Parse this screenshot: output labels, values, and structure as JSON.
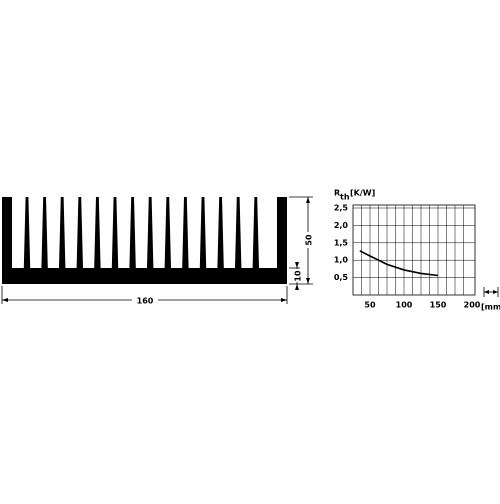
{
  "drawing": {
    "width": "160",
    "height": "50",
    "base": "10"
  },
  "chart_data": {
    "type": "line",
    "y_label": "R",
    "y_label_sub": "th",
    "y_unit": "[K/W]",
    "x_unit": "[mm]",
    "x": [
      35,
      50,
      75,
      100,
      125,
      150
    ],
    "series": [
      {
        "color": "#000000",
        "values": [
          1.27,
          1.12,
          0.88,
          0.72,
          0.62,
          0.56
        ]
      }
    ],
    "xlim": [
      25,
      200
    ],
    "ylim": [
      0,
      2.5
    ],
    "xticks": [
      50,
      100,
      150,
      200
    ],
    "yticks": [
      {
        "value": 0.5,
        "label": "0,5"
      },
      {
        "value": 1,
        "label": "1,0"
      },
      {
        "value": 1.5,
        "label": "1,5"
      },
      {
        "value": 2,
        "label": "2,0"
      },
      {
        "value": 2.5,
        "label": "2,5"
      }
    ],
    "grid": true
  }
}
